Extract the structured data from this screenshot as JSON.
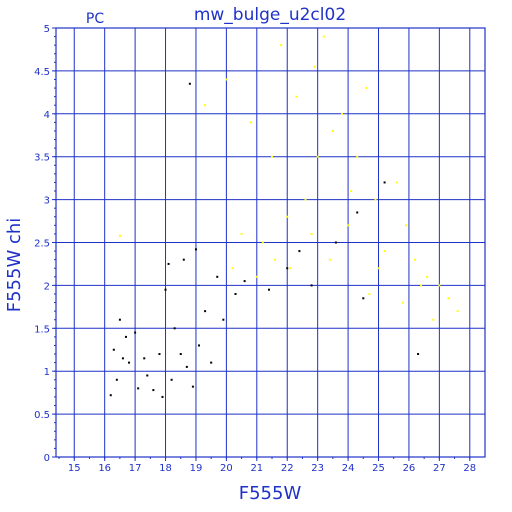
{
  "chart_data": {
    "type": "scatter",
    "title": "mw_bulge_u2cl02",
    "corner_label": "PC",
    "xlabel": "F555W",
    "ylabel": "F555W  chi",
    "xlim": [
      14.4,
      28.5
    ],
    "ylim": [
      0,
      5
    ],
    "x_ticks": [
      15,
      16,
      17,
      18,
      19,
      20,
      21,
      22,
      23,
      24,
      25,
      26,
      27,
      28
    ],
    "y_ticks": [
      0,
      0.5,
      1,
      1.5,
      2,
      2.5,
      3,
      3.5,
      4,
      4.5,
      5
    ],
    "x_tick_labels": [
      "15",
      "16",
      "17",
      "18",
      "19",
      "20",
      "21",
      "22",
      "23",
      "24",
      "25",
      "26",
      "27",
      "28"
    ],
    "y_tick_labels": [
      "0",
      "0.5",
      "1",
      "1.5",
      "2",
      "2.5",
      "3",
      "3.5",
      "4",
      "4.5",
      "5"
    ],
    "grid": true,
    "colors": {
      "axis": "#1f32c8",
      "grid": "#1f32c8",
      "accepted": "#000000",
      "rejected": "#ffff00"
    },
    "series": [
      {
        "color": "#000000",
        "points": [
          [
            16.2,
            0.72
          ],
          [
            16.3,
            1.25
          ],
          [
            16.4,
            0.9
          ],
          [
            16.5,
            1.6
          ],
          [
            16.6,
            1.15
          ],
          [
            16.7,
            1.4
          ],
          [
            16.8,
            1.1
          ],
          [
            17.0,
            1.45
          ],
          [
            17.1,
            0.8
          ],
          [
            17.3,
            1.15
          ],
          [
            17.4,
            0.95
          ],
          [
            17.6,
            0.78
          ],
          [
            17.8,
            1.2
          ],
          [
            17.9,
            0.7
          ],
          [
            18.0,
            1.95
          ],
          [
            18.1,
            2.25
          ],
          [
            18.2,
            0.9
          ],
          [
            18.3,
            1.5
          ],
          [
            18.5,
            1.2
          ],
          [
            18.6,
            2.3
          ],
          [
            18.7,
            1.05
          ],
          [
            18.8,
            4.35
          ],
          [
            18.9,
            0.82
          ],
          [
            19.0,
            2.42
          ],
          [
            19.1,
            1.3
          ],
          [
            19.3,
            1.7
          ],
          [
            19.5,
            1.1
          ],
          [
            19.7,
            2.1
          ],
          [
            19.9,
            1.6
          ],
          [
            20.3,
            1.9
          ],
          [
            20.6,
            2.05
          ],
          [
            21.4,
            1.95
          ],
          [
            22.0,
            2.2
          ],
          [
            22.4,
            2.4
          ],
          [
            22.8,
            2.0
          ],
          [
            23.6,
            2.5
          ],
          [
            24.3,
            2.85
          ],
          [
            25.2,
            3.2
          ],
          [
            24.5,
            1.85
          ],
          [
            26.3,
            1.2
          ]
        ]
      },
      {
        "color": "#ffff00",
        "points": [
          [
            16.5,
            2.58
          ],
          [
            19.3,
            4.1
          ],
          [
            20.0,
            4.4
          ],
          [
            20.5,
            2.6
          ],
          [
            20.8,
            3.9
          ],
          [
            21.2,
            2.5
          ],
          [
            21.5,
            3.5
          ],
          [
            21.8,
            4.8
          ],
          [
            22.1,
            2.2
          ],
          [
            22.3,
            4.2
          ],
          [
            22.6,
            3.0
          ],
          [
            22.9,
            4.55
          ],
          [
            23.2,
            4.9
          ],
          [
            23.5,
            3.8
          ],
          [
            23.8,
            4.0
          ],
          [
            24.0,
            2.7
          ],
          [
            24.3,
            3.5
          ],
          [
            24.6,
            4.3
          ],
          [
            24.9,
            3.0
          ],
          [
            25.2,
            2.4
          ],
          [
            25.6,
            3.2
          ],
          [
            25.9,
            2.7
          ],
          [
            26.2,
            2.3
          ],
          [
            26.6,
            2.1
          ],
          [
            27.0,
            2.0
          ],
          [
            27.3,
            1.85
          ],
          [
            27.6,
            1.7
          ],
          [
            26.8,
            1.6
          ],
          [
            25.8,
            1.8
          ],
          [
            24.7,
            1.9
          ],
          [
            23.4,
            2.3
          ],
          [
            22.8,
            2.6
          ],
          [
            21.0,
            2.1
          ],
          [
            20.2,
            2.2
          ],
          [
            24.1,
            3.1
          ],
          [
            25.0,
            2.2
          ],
          [
            26.4,
            2.0
          ],
          [
            23.0,
            3.5
          ],
          [
            22.0,
            2.8
          ],
          [
            21.6,
            2.3
          ]
        ]
      }
    ]
  }
}
